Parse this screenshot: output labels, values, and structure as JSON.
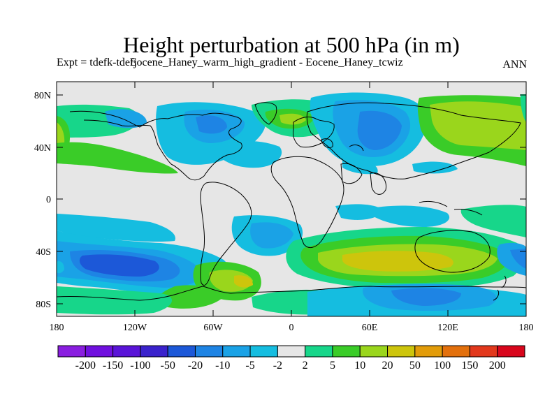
{
  "title": "Height perturbation at 500 hPa (in m)",
  "subtitle": "Expt = tdefk-tdefj",
  "subtitle_overlap": "Eocene_Haney_warm_high_gradient - Eocene_Haney_tcwiz",
  "season": "ANN",
  "lat_labels": [
    "80N",
    "40N",
    "0",
    "40S",
    "80S"
  ],
  "lon_labels": [
    "180",
    "120W",
    "60W",
    "0",
    "60E",
    "120E",
    "180"
  ],
  "colorbar": {
    "labels": [
      "-200",
      "-150",
      "-100",
      "-50",
      "-20",
      "-10",
      "-5",
      "-2",
      "2",
      "5",
      "10",
      "20",
      "50",
      "100",
      "150",
      "200"
    ],
    "colors": [
      "#8a1ee0",
      "#7010df",
      "#5a14d8",
      "#3a22cc",
      "#1c58d8",
      "#1e84e4",
      "#1aa2e6",
      "#15bde0",
      "#e6e6e6",
      "#17d68a",
      "#3acc28",
      "#9ad61c",
      "#cdc50c",
      "#e29c0a",
      "#e3700c",
      "#e2381c",
      "#d8061c"
    ]
  }
}
